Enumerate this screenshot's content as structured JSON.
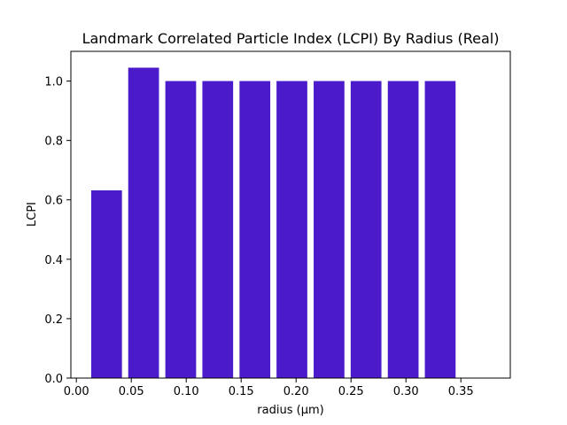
{
  "chart_data": {
    "type": "bar",
    "title": "Landmark Correlated Particle Index (LCPI) By Radius (Real)",
    "xlabel": "radius (µm)",
    "ylabel": "LCPI",
    "bar_color": "#4b1acb",
    "xlim": [
      -0.005,
      0.395
    ],
    "ylim": [
      0.0,
      1.1
    ],
    "bar_width": 0.028,
    "x": [
      0.0275,
      0.0612,
      0.095,
      0.1287,
      0.1625,
      0.1962,
      0.23,
      0.2637,
      0.2975,
      0.3312
    ],
    "values": [
      0.632,
      1.045,
      1.0,
      1.0,
      1.0,
      1.0,
      1.0,
      1.0,
      1.0,
      1.0
    ],
    "xticks": [
      0.0,
      0.05,
      0.1,
      0.15,
      0.2,
      0.25,
      0.3,
      0.35
    ],
    "xtick_labels": [
      "0.00",
      "0.05",
      "0.10",
      "0.15",
      "0.20",
      "0.25",
      "0.30",
      "0.35"
    ],
    "yticks": [
      0.0,
      0.2,
      0.4,
      0.6,
      0.8,
      1.0
    ],
    "ytick_labels": [
      "0.0",
      "0.2",
      "0.4",
      "0.6",
      "0.8",
      "1.0"
    ],
    "grid": false,
    "legend": "none"
  }
}
